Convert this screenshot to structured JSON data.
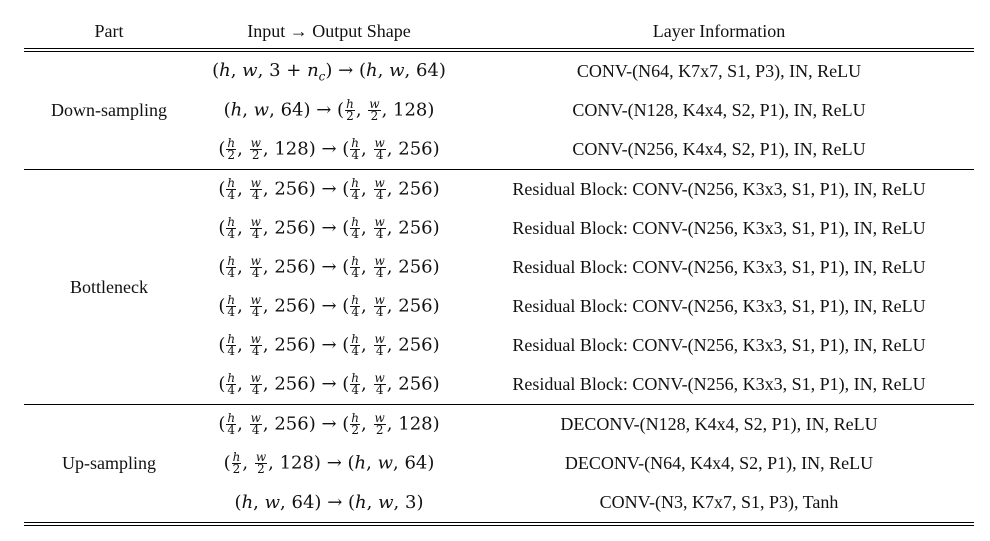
{
  "headers": {
    "part": "Part",
    "shape": "Input → Output Shape",
    "info": "Layer Information"
  },
  "groups": [
    {
      "part": "Down-sampling",
      "rows": [
        {
          "shape": "(h, w, 3 + n_c) → (h, w, 64)",
          "info": "CONV-(N64, K7x7, S1, P3), IN, ReLU"
        },
        {
          "shape": "(h, w, 64) → (h/2, w/2, 128)",
          "info": "CONV-(N128, K4x4, S2, P1), IN, ReLU"
        },
        {
          "shape": "(h/2, w/2, 128) → (h/4, w/4, 256)",
          "info": "CONV-(N256, K4x4, S2, P1), IN, ReLU"
        }
      ]
    },
    {
      "part": "Bottleneck",
      "rows": [
        {
          "shape": "(h/4, w/4, 256) → (h/4, w/4, 256)",
          "info": "Residual Block: CONV-(N256, K3x3, S1, P1), IN, ReLU"
        },
        {
          "shape": "(h/4, w/4, 256) → (h/4, w/4, 256)",
          "info": "Residual Block: CONV-(N256, K3x3, S1, P1), IN, ReLU"
        },
        {
          "shape": "(h/4, w/4, 256) → (h/4, w/4, 256)",
          "info": "Residual Block: CONV-(N256, K3x3, S1, P1), IN, ReLU"
        },
        {
          "shape": "(h/4, w/4, 256) → (h/4, w/4, 256)",
          "info": "Residual Block: CONV-(N256, K3x3, S1, P1), IN, ReLU"
        },
        {
          "shape": "(h/4, w/4, 256) → (h/4, w/4, 256)",
          "info": "Residual Block: CONV-(N256, K3x3, S1, P1), IN, ReLU"
        },
        {
          "shape": "(h/4, w/4, 256) → (h/4, w/4, 256)",
          "info": "Residual Block: CONV-(N256, K3x3, S1, P1), IN, ReLU"
        }
      ]
    },
    {
      "part": "Up-sampling",
      "rows": [
        {
          "shape": "(h/4, w/4, 256) → (h/2, w/2, 128)",
          "info": "DECONV-(N128, K4x4, S2, P1), IN, ReLU"
        },
        {
          "shape": "(h/2, w/2, 128) → (h, w, 64)",
          "info": "DECONV-(N64, K4x4, S2, P1), IN, ReLU"
        },
        {
          "shape": "(h, w, 64) → (h, w, 3)",
          "info": "CONV-(N3, K7x7, S1, P3), Tanh"
        }
      ]
    }
  ]
}
